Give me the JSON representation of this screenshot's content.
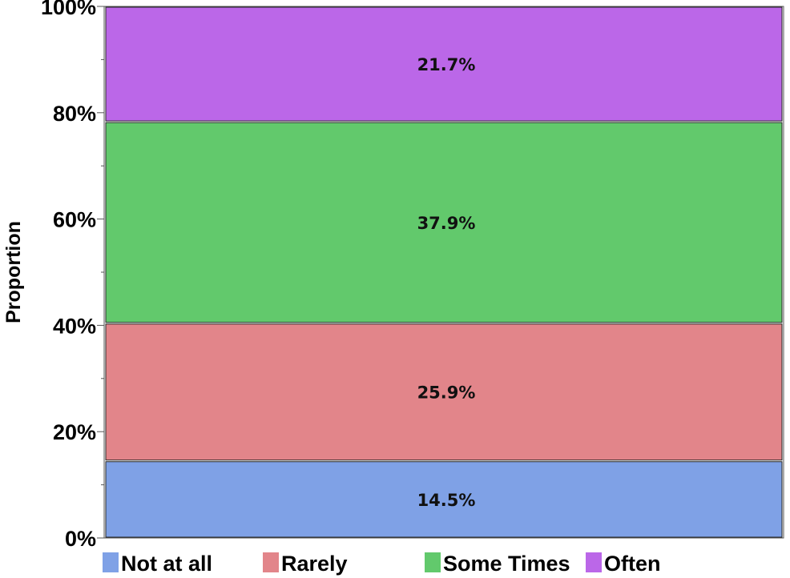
{
  "chart_data": {
    "type": "bar",
    "stacked": true,
    "categories": [
      ""
    ],
    "series": [
      {
        "name": "Not at all",
        "values": [
          14.5
        ],
        "label": "14.5%",
        "color": "#7fa1e6"
      },
      {
        "name": "Rarely",
        "values": [
          25.9
        ],
        "label": "25.9%",
        "color": "#e2858a"
      },
      {
        "name": "Some Times",
        "values": [
          37.9
        ],
        "label": "37.9%",
        "color": "#62c96c"
      },
      {
        "name": "Often",
        "values": [
          21.7
        ],
        "label": "21.7%",
        "color": "#bb67e8"
      }
    ],
    "ylabel": "Proportion",
    "ylim": [
      0,
      100
    ],
    "yticks": [
      "0%",
      "20%",
      "40%",
      "60%",
      "80%",
      "100%"
    ],
    "ytick_values": [
      0,
      20,
      40,
      60,
      80,
      100
    ],
    "legend_position": "bottom",
    "grid": false
  }
}
